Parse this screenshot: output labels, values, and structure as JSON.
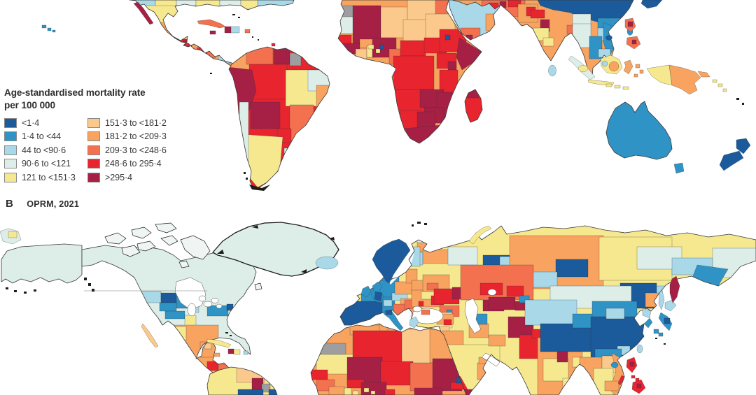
{
  "panel_b": {
    "letter": "B",
    "title": "OPRM, 2021"
  },
  "legend": {
    "title_line1": "Age-standardised mortality rate",
    "title_line2": "per 100 000",
    "bins": [
      {
        "label": "<1·4",
        "color": "#1b5a9b"
      },
      {
        "label": "1·4 to <44",
        "color": "#3093c5"
      },
      {
        "label": "44 to <90·6",
        "color": "#a9d9e8"
      },
      {
        "label": "90·6 to <121",
        "color": "#ddeee9"
      },
      {
        "label": "121 to <151·3",
        "color": "#f6e88e"
      },
      {
        "label": "151·3 to <181·2",
        "color": "#fbc98b"
      },
      {
        "label": "181·2 to <209·3",
        "color": "#f8a35f"
      },
      {
        "label": "209·3 to <248·6",
        "color": "#f3714f"
      },
      {
        "label": "248·6 to 295·4",
        "color": "#e8242f"
      },
      {
        "label": ">295·4",
        "color": "#a62045"
      }
    ]
  },
  "colors": {
    "gray": "#9e9ea0",
    "island": "#eff5f2",
    "ink": "#1c1c1c",
    "ocean": "#ffffff",
    "text": "#3a3a3a",
    "swatch_border": "#8a8a8a"
  },
  "map_regions": {
    "panel_a": {
      "a-north-america-base": 6,
      "a-us-south-strip": 3,
      "a-us-south-strip-blue": 2,
      "a-us-south-strip-yellow": 4,
      "a-florida": 4,
      "a-baja-california": 9,
      "a-mexico-north": 4,
      "a-mexico-red": 8,
      "a-mexico-maroon": 9,
      "a-yucatan": 5,
      "a-guatemala": 8,
      "a-honduras": 6,
      "a-nicaragua": 8,
      "a-costa-rica": 7,
      "a-panama": 2,
      "a-cuba": 7,
      "a-jamaica": 9,
      "a-haiti": 9,
      "a-dominican-republic": 2,
      "a-puerto-rico": 7,
      "a-trinidad": 8,
      "a-south-america-base": 8,
      "a-colombia": 6,
      "a-venezuela": 7,
      "a-guyana": 9,
      "a-french-guiana": "gray",
      "a-peru": 9,
      "a-brazil-west": 8,
      "a-brazil-central": 4,
      "a-brazil-northeast": 3,
      "a-brazil-east": 6,
      "a-bolivia": 9,
      "a-paraguay": 8,
      "a-brazil-south": 7,
      "a-uruguay": 3,
      "a-argentina": 4,
      "a-chile": 3,
      "a-africa-base": 6,
      "a-western-sahara": "gray",
      "a-mauritania": 3,
      "a-mali": 9,
      "a-senegal": 8,
      "a-guinea": 9,
      "a-ivory-coast": 5,
      "a-ghana": 4,
      "a-burkina-faso": 6,
      "a-niger": 5,
      "a-libya": 5,
      "a-egypt": 7,
      "a-chad": 5,
      "a-sudan": 5,
      "a-nigeria": 9,
      "a-nigeria-mosaic": 4,
      "a-benin-navy": 0,
      "a-cameroon": 7,
      "a-central-african-republic": 8,
      "a-south-sudan": 8,
      "a-ethiopia": 8,
      "a-ethiopia-navy": 0,
      "a-somalia": 9,
      "a-kenya-uganda": 8,
      "a-east-africa-maroon": 9,
      "a-drc": 8,
      "a-tanzania": 8,
      "a-angola": 8,
      "a-zambia": 9,
      "a-mozambique": 9,
      "a-zimbabwe": 9,
      "a-namibia": 8,
      "a-namibia-coast": 7,
      "a-botswana": 9,
      "a-south-africa": 9,
      "a-lesotho": 8,
      "a-madagascar": 8,
      "a-madagascar-north": 9,
      "a-saudi-arabia": 2,
      "a-yemen": 7,
      "a-yemen-maroon": 9,
      "a-oman": 6,
      "a-eurasia-base": 6,
      "a-iran-mosaic": 7,
      "a-iran-red": 8,
      "a-iran-maroon": 9,
      "a-turkmenistan-red": 8,
      "a-pakistan": 6,
      "a-pakistan-red": 8,
      "a-india-yellow": 4,
      "a-india-maroon-state": 9,
      "a-india-north-red": 8,
      "a-bangladesh": 7,
      "a-sri-lanka": 2,
      "a-myanmar": 3,
      "a-thailand": 1,
      "a-laos": 2,
      "a-vietnam": 1,
      "a-cambodia": 2,
      "a-china": 0,
      "a-china-south": 1,
      "a-yunnan": 3,
      "a-taiwan": 1,
      "a-hainan": 0,
      "a-japan": 0,
      "a-sumatra": 3,
      "a-sumatra-yellow": 4,
      "a-java": 4,
      "a-borneo": 4,
      "a-borneo-orange": 6,
      "a-borneo-blue": 2,
      "a-sulawesi": 6,
      "a-lesser-sunda": 4,
      "a-moluccas": 6,
      "a-philippines-luzon": 7,
      "a-philippines-mindanao": 7,
      "a-philippines-maroon": 9,
      "a-new-guinea-west": 4,
      "a-new-guinea-east": 6,
      "a-new-britain": 6,
      "a-solomons": 4,
      "a-australia": 1,
      "a-tasmania": 1,
      "a-new-zealand": 0,
      "a-hawaii": 1
    },
    "panel_b": {
      "b-north-america-base": 3,
      "b-alaska": 3,
      "b-greenland": 3,
      "b-iceland": 2,
      "b-montana": 2,
      "b-north-dakota": 0,
      "b-minnesota": 1,
      "b-wisconsin": 2,
      "b-nebraska-iowa": 1,
      "b-us-yellow": 4,
      "b-california": 2,
      "b-new-york-penn": 1,
      "b-new-england-navy": 0,
      "b-mexico-base": 6,
      "b-mexico-north": 4,
      "b-mexico-red": 8,
      "b-yucatan-b": 6,
      "b-yucatan-light": 5,
      "b-baja-california": 5,
      "b-guatemala": 8,
      "b-honduras": 7,
      "b-nicaragua": 8,
      "b-costa-rica": 6,
      "b-panama": 6,
      "b-cuba": 4,
      "b-haiti": 9,
      "b-dominican-republic": 4,
      "b-jamaica": 6,
      "b-puerto-rico": 2,
      "b-left-fragment": 3,
      "b-left-fragment-yellow": 4,
      "b-south-america-base": 4,
      "b-venezuela": 5,
      "b-guyana": 9,
      "b-french-guiana": "gray",
      "b-south-america-navy": 0,
      "b-eurasia-base": 4,
      "b-scandinavia": 0,
      "b-finland": 2,
      "b-denmark": 1,
      "b-uk": 1,
      "b-uk-navy": 0,
      "b-ireland": 1,
      "b-france": 1,
      "b-germany": 1,
      "b-iberia": 0,
      "b-italy": 1,
      "b-italy-navy": 0,
      "b-sicily": 1,
      "b-greece": 2,
      "b-crete": 2,
      "b-switzerland": 2,
      "b-czech-austria": 2,
      "b-poland": 6,
      "b-hungary": 6,
      "b-romania": 7,
      "b-balkans": 7,
      "b-bulgaria": 6,
      "b-baltics": 6,
      "b-belarus": 6,
      "b-ukraine": 6,
      "b-ukraine-yellow": 4,
      "b-ukraine-red": 8,
      "b-moldova": 8,
      "b-crimea": 7,
      "b-kola-orange": 6,
      "b-karelia": 2,
      "b-arkhangelsk": 6,
      "b-russia-palegreen": 3,
      "b-komi-navy": 0,
      "b-moscow-mosaic": 6,
      "b-moscow-red": 7,
      "b-russia-south-red": 8,
      "b-volga-maroon": 9,
      "b-ural-pale": 2,
      "b-siberia-orange": 6,
      "b-siberia-navy": 0,
      "b-siberia-lightblue": 2,
      "b-fareast-yellow": 4,
      "b-fareast-palegreen": 3,
      "b-chukotka-lightblue": 2,
      "b-magadan-teal": 1,
      "b-kamchatka": 9,
      "b-sakhalin": 2,
      "b-primorye-orange": 6,
      "b-amur-lightblue": 2,
      "b-manchuria-navy": 0,
      "b-novaya-zemlya": 4,
      "b-kazakhstan": 7,
      "b-central-asia-red": 8,
      "b-uzbekistan-maroon": 9,
      "b-kyrgyzstan-teal": 1,
      "b-caucasus": 7,
      "b-caucasus-teal": 1,
      "b-turkey": 4,
      "b-turkey-east": 6,
      "b-turkey-red": 8,
      "b-syria": 5,
      "b-iraq": 6,
      "b-iran-orange": 6,
      "b-iran-teal": 1,
      "b-afghanistan": 9,
      "b-pakistan": 8,
      "b-kashmir-red": 8,
      "b-india-base": 6,
      "b-india-yellow": 4,
      "b-india-maroon": 9,
      "b-nepal": 6,
      "b-bangladesh": 4,
      "b-mongolia": 3,
      "b-xinjiang": 2,
      "b-tibet": 0,
      "b-inner-mongolia": 1,
      "b-china-east": 0,
      "b-china-lightblue": 2,
      "b-china-south-teal": 1,
      "b-gansu-teal": 1,
      "b-korea-north": 2,
      "b-korea-south": 1,
      "b-hokkaido": 2,
      "b-japan-honshu": 1,
      "b-japan-navy": 0,
      "b-kyushu": 1,
      "b-taiwan": 2,
      "b-hainan": 1,
      "b-myanmar": 6,
      "b-thailand": 4,
      "b-laos": 5,
      "b-vietnam": 6,
      "b-cambodia": 6,
      "b-philippines": 8,
      "b-philippines-maroon": 9,
      "b-arabia-base": 4,
      "b-asir-red": 8,
      "b-yemen-maroon": 9,
      "b-oman-b": 6,
      "b-uae": 6,
      "b-jordan": 6,
      "b-africa-b-base": 6,
      "b-algeria": 8,
      "b-algeria-north": 6,
      "b-tunisia": 6,
      "b-western-sahara-b": "gray",
      "b-mauritania-b": 4,
      "b-mali-b": 9,
      "b-niger-b": 8,
      "b-chad-b": 7,
      "b-sudan-b": 9,
      "b-libya-b": 5,
      "b-egypt-b": 6,
      "b-senegal-b": 8,
      "b-guinea-b": 7,
      "b-ivory-coast-b": 6,
      "b-ghana-b": 4,
      "b-burkina-b": 8,
      "b-nigeria-b": 9,
      "b-nigeria-mosaic-b": 4,
      "b-cameroon-b": 8,
      "b-car-b": 9,
      "b-eritrea-b": 8,
      "b-sahel-navy": 0
    }
  }
}
